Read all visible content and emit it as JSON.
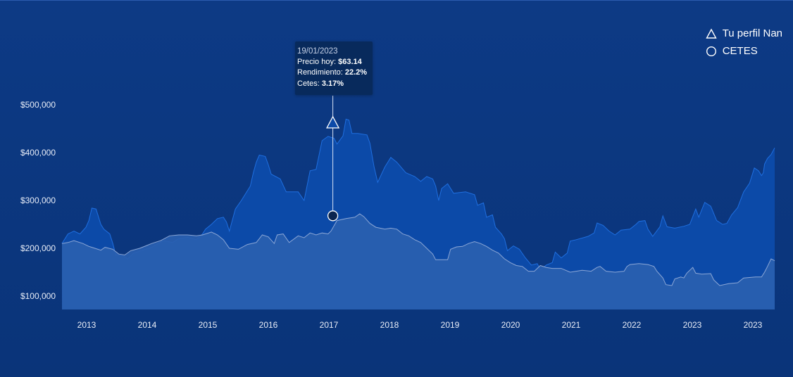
{
  "legend": {
    "perfil_label": "Tu perfil Nan",
    "cetes_label": "CETES"
  },
  "tooltip": {
    "date": "19/01/2023",
    "precio_label": "Precio hoy:",
    "precio_value": "$63.14",
    "rendimiento_label": "Rendimiento:",
    "rendimiento_value": "22.2%",
    "cetes_label": "Cetes:",
    "cetes_value": "3.17%"
  },
  "colors": {
    "background": "#0b347c",
    "perfil_fill": "#0c4aa8",
    "perfil_stroke": "#1f6fe0",
    "cetes_fill": "#2a5fb0",
    "cetes_stroke": "#8ca7d6",
    "overlap_fill": "#5a6f8f",
    "tooltip_bg": "#082a5c"
  },
  "chart_data": {
    "type": "area",
    "x_tick_labels": [
      "2013",
      "2014",
      "2015",
      "2016",
      "2017",
      "2018",
      "2019",
      "2020",
      "2021",
      "2022",
      "2023",
      "2023"
    ],
    "y_tick_labels": [
      "$500,000",
      "$400,000",
      "$300,000",
      "$200,000",
      "$100,000"
    ],
    "y_tick_values": [
      500000,
      400000,
      300000,
      200000,
      100000
    ],
    "ylim": [
      75000,
      545000
    ],
    "x_domain": [
      2012.6,
      2024.35
    ],
    "series": [
      {
        "name": "Tu perfil Nan",
        "points": [
          [
            2012.6,
            210000
          ],
          [
            2012.7,
            230000
          ],
          [
            2012.8,
            236000
          ],
          [
            2012.9,
            230000
          ],
          [
            2013.0,
            244000
          ],
          [
            2013.05,
            258000
          ],
          [
            2013.1,
            284000
          ],
          [
            2013.17,
            282000
          ],
          [
            2013.25,
            250000
          ],
          [
            2013.3,
            240000
          ],
          [
            2013.4,
            230000
          ],
          [
            2013.45,
            210000
          ],
          [
            2013.5,
            186000
          ],
          [
            2013.6,
            185000
          ],
          [
            2013.7,
            178000
          ],
          [
            2013.8,
            190000
          ],
          [
            2013.95,
            196000
          ],
          [
            2014.1,
            202000
          ],
          [
            2014.3,
            216000
          ],
          [
            2014.45,
            212000
          ],
          [
            2014.55,
            220000
          ],
          [
            2014.7,
            223000
          ],
          [
            2014.85,
            218000
          ],
          [
            2014.95,
            230000
          ],
          [
            2015.0,
            240000
          ],
          [
            2015.1,
            250000
          ],
          [
            2015.2,
            262000
          ],
          [
            2015.3,
            265000
          ],
          [
            2015.35,
            255000
          ],
          [
            2015.4,
            236000
          ],
          [
            2015.5,
            282000
          ],
          [
            2015.6,
            300000
          ],
          [
            2015.7,
            320000
          ],
          [
            2015.75,
            330000
          ],
          [
            2015.8,
            358000
          ],
          [
            2015.85,
            380000
          ],
          [
            2015.9,
            395000
          ],
          [
            2016.0,
            392000
          ],
          [
            2016.05,
            375000
          ],
          [
            2016.1,
            355000
          ],
          [
            2016.25,
            345000
          ],
          [
            2016.35,
            318000
          ],
          [
            2016.55,
            318000
          ],
          [
            2016.65,
            300000
          ],
          [
            2016.75,
            362000
          ],
          [
            2016.85,
            365000
          ],
          [
            2016.95,
            425000
          ],
          [
            2017.05,
            434000
          ],
          [
            2017.15,
            430000
          ],
          [
            2017.2,
            418000
          ],
          [
            2017.3,
            435000
          ],
          [
            2017.35,
            470000
          ],
          [
            2017.4,
            468000
          ],
          [
            2017.45,
            440000
          ],
          [
            2017.55,
            440000
          ],
          [
            2017.7,
            437000
          ],
          [
            2017.75,
            420000
          ],
          [
            2017.82,
            370000
          ],
          [
            2017.88,
            338000
          ],
          [
            2018.0,
            370000
          ],
          [
            2018.1,
            390000
          ],
          [
            2018.2,
            380000
          ],
          [
            2018.35,
            358000
          ],
          [
            2018.5,
            350000
          ],
          [
            2018.6,
            340000
          ],
          [
            2018.7,
            350000
          ],
          [
            2018.8,
            345000
          ],
          [
            2018.85,
            330000
          ],
          [
            2018.9,
            300000
          ],
          [
            2018.95,
            325000
          ],
          [
            2019.05,
            335000
          ],
          [
            2019.15,
            315000
          ],
          [
            2019.35,
            318000
          ],
          [
            2019.5,
            312000
          ],
          [
            2019.55,
            290000
          ],
          [
            2019.65,
            295000
          ],
          [
            2019.7,
            265000
          ],
          [
            2019.8,
            270000
          ],
          [
            2019.85,
            244000
          ],
          [
            2019.95,
            230000
          ],
          [
            2020.0,
            220000
          ],
          [
            2020.05,
            195000
          ],
          [
            2020.15,
            205000
          ],
          [
            2020.25,
            198000
          ],
          [
            2020.35,
            180000
          ],
          [
            2020.45,
            165000
          ],
          [
            2020.55,
            168000
          ],
          [
            2020.6,
            155000
          ],
          [
            2020.7,
            165000
          ],
          [
            2020.8,
            170000
          ],
          [
            2020.85,
            192000
          ],
          [
            2020.95,
            180000
          ],
          [
            2021.05,
            190000
          ],
          [
            2021.1,
            215000
          ],
          [
            2021.2,
            218000
          ],
          [
            2021.4,
            225000
          ],
          [
            2021.5,
            232000
          ],
          [
            2021.55,
            253000
          ],
          [
            2021.65,
            248000
          ],
          [
            2021.75,
            236000
          ],
          [
            2021.85,
            228000
          ],
          [
            2021.95,
            238000
          ],
          [
            2022.1,
            240000
          ],
          [
            2022.2,
            250000
          ],
          [
            2022.25,
            256000
          ],
          [
            2022.35,
            258000
          ],
          [
            2022.4,
            240000
          ],
          [
            2022.48,
            225000
          ],
          [
            2022.6,
            245000
          ],
          [
            2022.65,
            268000
          ],
          [
            2022.72,
            245000
          ],
          [
            2022.85,
            242000
          ],
          [
            2023.0,
            246000
          ],
          [
            2023.1,
            250000
          ],
          [
            2023.2,
            282000
          ],
          [
            2023.25,
            265000
          ],
          [
            2023.35,
            296000
          ],
          [
            2023.45,
            288000
          ],
          [
            2023.55,
            258000
          ],
          [
            2023.65,
            250000
          ],
          [
            2023.72,
            252000
          ],
          [
            2023.8,
            270000
          ],
          [
            2023.9,
            285000
          ],
          [
            2024.0,
            318000
          ],
          [
            2024.1,
            336000
          ],
          [
            2024.18,
            368000
          ],
          [
            2024.25,
            362000
          ],
          [
            2024.3,
            352000
          ],
          [
            2024.33,
            358000
          ],
          [
            2024.35,
            376000
          ],
          [
            2024.4,
            388000
          ],
          [
            2024.46,
            396000
          ],
          [
            2024.52,
            410000
          ]
        ]
      },
      {
        "name": "CETES",
        "points": [
          [
            2012.6,
            210000
          ],
          [
            2012.7,
            212000
          ],
          [
            2012.8,
            216000
          ],
          [
            2012.95,
            210000
          ],
          [
            2013.05,
            204000
          ],
          [
            2013.15,
            200000
          ],
          [
            2013.25,
            196000
          ],
          [
            2013.32,
            202000
          ],
          [
            2013.45,
            198000
          ],
          [
            2013.55,
            188000
          ],
          [
            2013.65,
            186000
          ],
          [
            2013.75,
            195000
          ],
          [
            2013.9,
            200000
          ],
          [
            2014.0,
            205000
          ],
          [
            2014.1,
            210000
          ],
          [
            2014.25,
            216000
          ],
          [
            2014.4,
            226000
          ],
          [
            2014.55,
            228000
          ],
          [
            2014.7,
            228000
          ],
          [
            2014.85,
            226000
          ],
          [
            2014.95,
            228000
          ],
          [
            2015.1,
            234000
          ],
          [
            2015.2,
            228000
          ],
          [
            2015.3,
            218000
          ],
          [
            2015.4,
            200000
          ],
          [
            2015.55,
            198000
          ],
          [
            2015.7,
            208000
          ],
          [
            2015.85,
            212000
          ],
          [
            2015.95,
            228000
          ],
          [
            2016.05,
            224000
          ],
          [
            2016.15,
            210000
          ],
          [
            2016.2,
            228000
          ],
          [
            2016.3,
            230000
          ],
          [
            2016.4,
            212000
          ],
          [
            2016.55,
            226000
          ],
          [
            2016.65,
            222000
          ],
          [
            2016.75,
            232000
          ],
          [
            2016.85,
            228000
          ],
          [
            2016.95,
            232000
          ],
          [
            2017.05,
            230000
          ],
          [
            2017.1,
            236000
          ],
          [
            2017.2,
            258000
          ],
          [
            2017.35,
            262000
          ],
          [
            2017.5,
            265000
          ],
          [
            2017.58,
            272000
          ],
          [
            2017.65,
            266000
          ],
          [
            2017.75,
            252000
          ],
          [
            2017.85,
            244000
          ],
          [
            2018.0,
            240000
          ],
          [
            2018.1,
            242000
          ],
          [
            2018.2,
            240000
          ],
          [
            2018.3,
            230000
          ],
          [
            2018.4,
            226000
          ],
          [
            2018.5,
            218000
          ],
          [
            2018.6,
            212000
          ],
          [
            2018.7,
            200000
          ],
          [
            2018.8,
            188000
          ],
          [
            2018.85,
            176000
          ],
          [
            2019.05,
            176000
          ],
          [
            2019.1,
            198000
          ],
          [
            2019.2,
            203000
          ],
          [
            2019.3,
            204000
          ],
          [
            2019.4,
            210000
          ],
          [
            2019.5,
            214000
          ],
          [
            2019.6,
            210000
          ],
          [
            2019.7,
            204000
          ],
          [
            2019.8,
            196000
          ],
          [
            2019.9,
            190000
          ],
          [
            2020.0,
            178000
          ],
          [
            2020.1,
            170000
          ],
          [
            2020.2,
            164000
          ],
          [
            2020.3,
            162000
          ],
          [
            2020.4,
            152000
          ],
          [
            2020.5,
            152000
          ],
          [
            2020.55,
            158000
          ],
          [
            2020.6,
            164000
          ],
          [
            2020.7,
            160000
          ],
          [
            2020.8,
            158000
          ],
          [
            2020.95,
            158000
          ],
          [
            2021.1,
            150000
          ],
          [
            2021.2,
            152000
          ],
          [
            2021.3,
            154000
          ],
          [
            2021.45,
            152000
          ],
          [
            2021.55,
            160000
          ],
          [
            2021.6,
            162000
          ],
          [
            2021.7,
            152000
          ],
          [
            2021.85,
            150000
          ],
          [
            2022.0,
            152000
          ],
          [
            2022.05,
            162000
          ],
          [
            2022.1,
            166000
          ],
          [
            2022.25,
            168000
          ],
          [
            2022.4,
            166000
          ],
          [
            2022.5,
            162000
          ],
          [
            2022.55,
            152000
          ],
          [
            2022.65,
            138000
          ],
          [
            2022.7,
            124000
          ],
          [
            2022.8,
            122000
          ],
          [
            2022.85,
            136000
          ],
          [
            2022.95,
            140000
          ],
          [
            2023.0,
            138000
          ],
          [
            2023.05,
            148000
          ],
          [
            2023.15,
            160000
          ],
          [
            2023.2,
            148000
          ],
          [
            2023.3,
            146000
          ],
          [
            2023.45,
            147000
          ],
          [
            2023.5,
            134000
          ],
          [
            2023.6,
            122000
          ],
          [
            2023.75,
            126000
          ],
          [
            2023.9,
            128000
          ],
          [
            2024.0,
            138000
          ],
          [
            2024.1,
            139000
          ],
          [
            2024.2,
            140000
          ],
          [
            2024.3,
            140000
          ],
          [
            2024.35,
            150000
          ],
          [
            2024.4,
            162000
          ],
          [
            2024.46,
            178000
          ],
          [
            2024.52,
            174000
          ]
        ]
      }
    ],
    "markers": {
      "perfil_value": 462000,
      "cetes_value": 268000,
      "marker_x": 2017.13
    },
    "grid": false,
    "legend_position": "top-right"
  }
}
